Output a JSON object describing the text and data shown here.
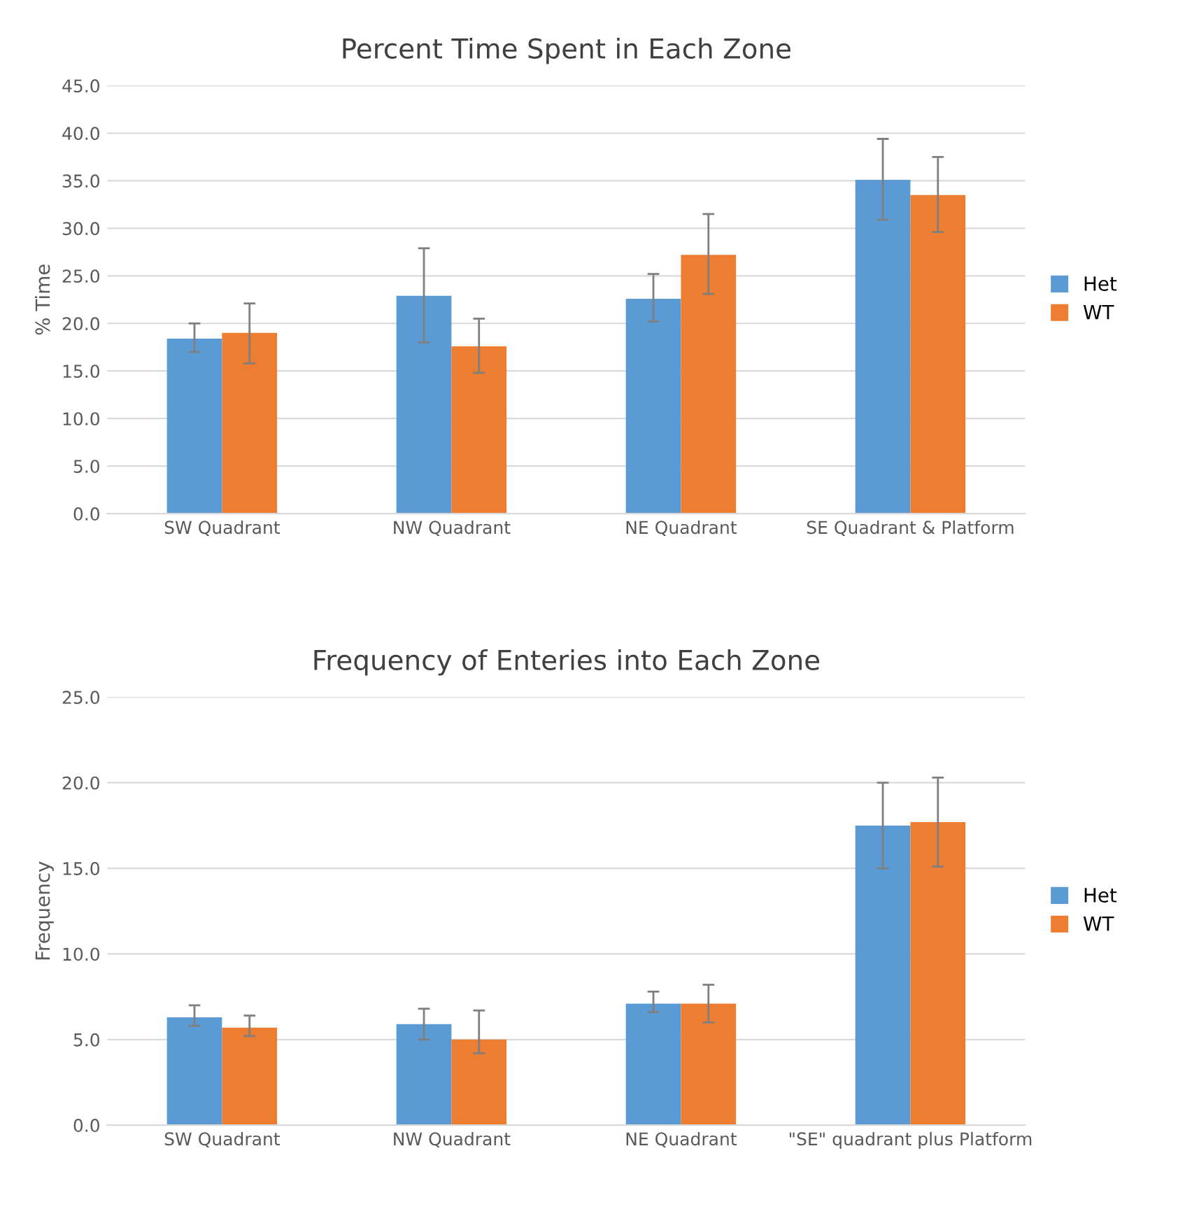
{
  "chart_data": [
    {
      "type": "bar",
      "title": "Percent Time Spent in Each Zone",
      "ylabel": "% Time",
      "categories": [
        "SW Quadrant",
        "NW Quadrant",
        "NE Quadrant",
        "SE Quadrant & Platform"
      ],
      "series": [
        {
          "name": "Het",
          "color": "#5b9bd5",
          "values": [
            18.4,
            22.9,
            22.6,
            35.1
          ],
          "errors": [
            [
              17.0,
              20.0
            ],
            [
              18.0,
              27.9
            ],
            [
              20.2,
              25.2
            ],
            [
              30.9,
              39.4
            ]
          ]
        },
        {
          "name": "WT",
          "color": "#ed7d31",
          "values": [
            19.0,
            17.6,
            27.2,
            33.5
          ],
          "errors": [
            [
              15.8,
              22.1
            ],
            [
              14.8,
              20.5
            ],
            [
              23.1,
              31.5
            ],
            [
              29.6,
              37.5
            ]
          ]
        }
      ],
      "ylim": [
        0,
        45
      ],
      "yticks": [
        {
          "value": 0,
          "label": "0.0"
        },
        {
          "value": 5,
          "label": "5.0"
        },
        {
          "value": 10,
          "label": "10.0"
        },
        {
          "value": 15,
          "label": "15.0"
        },
        {
          "value": 20,
          "label": "20.0"
        },
        {
          "value": 25,
          "label": "25.0"
        },
        {
          "value": 30,
          "label": "30.0"
        },
        {
          "value": 35,
          "label": "35.0"
        },
        {
          "value": 40,
          "label": "40.0"
        },
        {
          "value": 45,
          "label": "45.0"
        }
      ],
      "grid": "y",
      "legend": "right"
    },
    {
      "type": "bar",
      "title": "Frequency of Enteries into Each Zone",
      "ylabel": "Frequency",
      "categories": [
        "SW Quadrant",
        "NW Quadrant",
        "NE Quadrant",
        "\"SE\" quadrant plus Platform"
      ],
      "series": [
        {
          "name": "Het",
          "color": "#5b9bd5",
          "values": [
            6.3,
            5.9,
            7.1,
            17.5
          ],
          "errors": [
            [
              5.8,
              7.0
            ],
            [
              5.0,
              6.8
            ],
            [
              6.6,
              7.8
            ],
            [
              15.0,
              20.0
            ]
          ]
        },
        {
          "name": "WT",
          "color": "#ed7d31",
          "values": [
            5.7,
            5.0,
            7.1,
            17.7
          ],
          "errors": [
            [
              5.2,
              6.4
            ],
            [
              4.2,
              6.7
            ],
            [
              6.0,
              8.2
            ],
            [
              15.1,
              20.3
            ]
          ]
        }
      ],
      "ylim": [
        0,
        25
      ],
      "yticks": [
        {
          "value": 0,
          "label": "0.0"
        },
        {
          "value": 5,
          "label": "5.0"
        },
        {
          "value": 10,
          "label": "10.0"
        },
        {
          "value": 15,
          "label": "15.0"
        },
        {
          "value": 20,
          "label": "20.0"
        },
        {
          "value": 25,
          "label": "25.0"
        }
      ],
      "grid": "y",
      "legend": "right"
    }
  ]
}
